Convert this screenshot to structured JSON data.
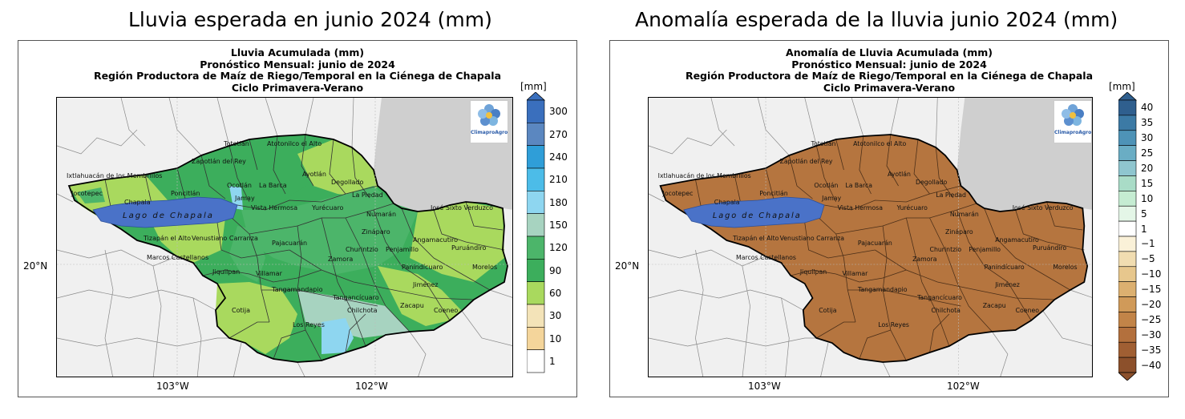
{
  "panels": [
    {
      "heading": "Lluvia esperada en junio 2024 (mm)",
      "title_lines": [
        "Lluvia Acumulada (mm)",
        "Pronóstico Mensual: junio de 2024",
        "Región Productora de Maíz de Riego/Temporal en la Ciénega de Chapala",
        "Ciclo Primavera-Verano"
      ],
      "unit": "[mm]",
      "colorbar": {
        "labels": [
          "300",
          "270",
          "240",
          "210",
          "180",
          "150",
          "120",
          "90",
          "60",
          "30",
          "10",
          "1"
        ],
        "colors": [
          "#3a6fbd",
          "#5b87c0",
          "#2f9ed8",
          "#4cbce8",
          "#8ed6f0",
          "#a7d3c0",
          "#4cb56a",
          "#3cae5c",
          "#a9d95e",
          "#f3e3b8",
          "#f4d59b",
          "#ffffff"
        ]
      },
      "lon_labels": [
        "103°W",
        "102°W"
      ],
      "lat_label": "20°N",
      "logo": "ClimaproAgro",
      "lake": "Lago de Chapala"
    },
    {
      "heading": "Anomalía esperada de la lluvia junio 2024 (mm)",
      "title_lines": [
        "Anomalía de Lluvia Acumulada (mm)",
        "Pronóstico Mensual: junio de 2024",
        "Región Productora de Maíz de Riego/Temporal en la Ciénega de Chapala",
        "Ciclo Primavera-Verano"
      ],
      "unit": "[mm]",
      "colorbar": {
        "labels": [
          "40",
          "35",
          "30",
          "25",
          "20",
          "15",
          "10",
          "5",
          "1",
          "−1",
          "−5",
          "−10",
          "−15",
          "−20",
          "−25",
          "−30",
          "−35",
          "−40"
        ],
        "colors": [
          "#2f5f8e",
          "#3c7aa5",
          "#4e93b7",
          "#6aadc4",
          "#8fc6cf",
          "#a9dcc7",
          "#c5ecd2",
          "#e4f6e7",
          "#ffffff",
          "#faf1d8",
          "#f1ddb1",
          "#e7c78d",
          "#dcb070",
          "#d09a59",
          "#c28448",
          "#b3703d",
          "#a05f33",
          "#8c502b"
        ]
      },
      "lon_labels": [
        "103°W",
        "102°W"
      ],
      "lat_label": "20°N",
      "logo": "ClimaproAgro",
      "lake": "Lago de Chapala"
    }
  ],
  "municipalities": [
    "Tototlán",
    "Atotonilco el Alto",
    "Zapotlán del Rey",
    "Ixtlahuacán de los Membrillos",
    "Ayotlán",
    "Degollado",
    "Poncitlán",
    "Ocotlán",
    "La Barca",
    "Jocotepec",
    "Chapala",
    "La Piedad",
    "Jamay",
    "Vista Hermosa",
    "Yurécuaro",
    "Numarán",
    "José Sixto Verduzco",
    "Zinápar​o",
    "Tizapán el Alto",
    "Venustiano Carranza",
    "Pajacuarán",
    "Churintzio",
    "Penjamillo",
    "Angamacutiro",
    "Puruándiro",
    "Marcos Castellanos",
    "Villamar",
    "Zamora",
    "Panindícuaro",
    "Morelos",
    "Jiquilpan",
    "Tangamandapio",
    "Tangancícuaro",
    "Jiménez",
    "Chilchota",
    "Zacapu",
    "Coeneo",
    "Cotija",
    "Los Reyes"
  ]
}
